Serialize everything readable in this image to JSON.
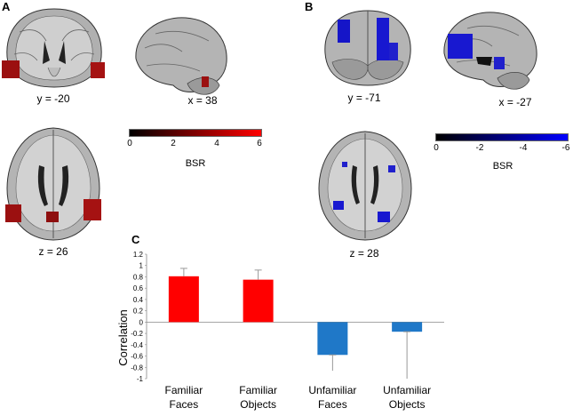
{
  "panels": {
    "a": {
      "letter": "A",
      "slices": [
        {
          "label": "y = -20"
        },
        {
          "label": "x = 38"
        },
        {
          "label": "z = 26"
        }
      ],
      "colorbar": {
        "ticks": [
          "0",
          "2",
          "4",
          "6"
        ],
        "title": "BSR",
        "gradient": [
          "#000000",
          "#ff0000"
        ]
      }
    },
    "b": {
      "letter": "B",
      "slices": [
        {
          "label": "y = -71"
        },
        {
          "label": "x = -27"
        },
        {
          "label": "z = 28"
        }
      ],
      "colorbar": {
        "ticks": [
          "0",
          "-2",
          "-4",
          "-6"
        ],
        "title": "BSR",
        "gradient": [
          "#000000",
          "#0000ff"
        ]
      }
    },
    "c": {
      "letter": "C"
    }
  },
  "chart_data": {
    "type": "bar",
    "ylabel": "Correlation",
    "ylim": [
      -1,
      1.2
    ],
    "yticks": [
      "1.2",
      "1",
      "0.8",
      "0.6",
      "0.4",
      "0.2",
      "0",
      "-0.2",
      "-0.4",
      "-0.6",
      "-0.8",
      "-1"
    ],
    "categories": [
      {
        "line1": "Familiar",
        "line2": "Faces"
      },
      {
        "line1": "Familiar",
        "line2": "Objects"
      },
      {
        "line1": "Unfamiliar",
        "line2": "Faces"
      },
      {
        "line1": "Unfamiliar",
        "line2": "Objects"
      }
    ],
    "values": [
      0.81,
      0.75,
      -0.58,
      -0.17
    ],
    "error_upper": [
      0.95,
      0.92,
      -0.58,
      -0.17
    ],
    "error_lower": [
      0.81,
      0.75,
      -0.86,
      -1.0
    ],
    "colors": [
      "#ff0000",
      "#ff0000",
      "#1f78c8",
      "#1f78c8"
    ]
  }
}
